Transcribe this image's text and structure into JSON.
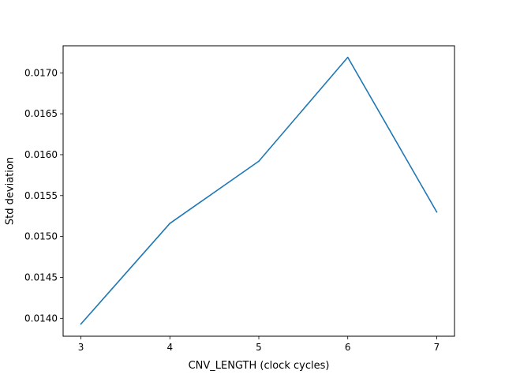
{
  "chart_data": {
    "type": "line",
    "title": "",
    "xlabel": "CNV_LENGTH (clock cycles)",
    "ylabel": "Std deviation",
    "x": [
      3,
      4,
      5,
      6,
      7
    ],
    "xlim": [
      2.8,
      7.2
    ],
    "ylim": [
      0.013781,
      0.017331
    ],
    "xticks": [
      3,
      4,
      5,
      6,
      7
    ],
    "xtick_labels": [
      "3",
      "4",
      "5",
      "6",
      "7"
    ],
    "yticks": [
      0.014,
      0.0145,
      0.015,
      0.0155,
      0.016,
      0.0165,
      0.017
    ],
    "ytick_labels": [
      "0.0140",
      "0.0145",
      "0.0150",
      "0.0155",
      "0.0160",
      "0.0165",
      "0.0170"
    ],
    "grid": false,
    "legend": "none",
    "series": [
      {
        "values": [
          0.01393,
          0.01516,
          0.01592,
          0.01719,
          0.0153
        ],
        "color": "#1f77b4"
      }
    ]
  }
}
